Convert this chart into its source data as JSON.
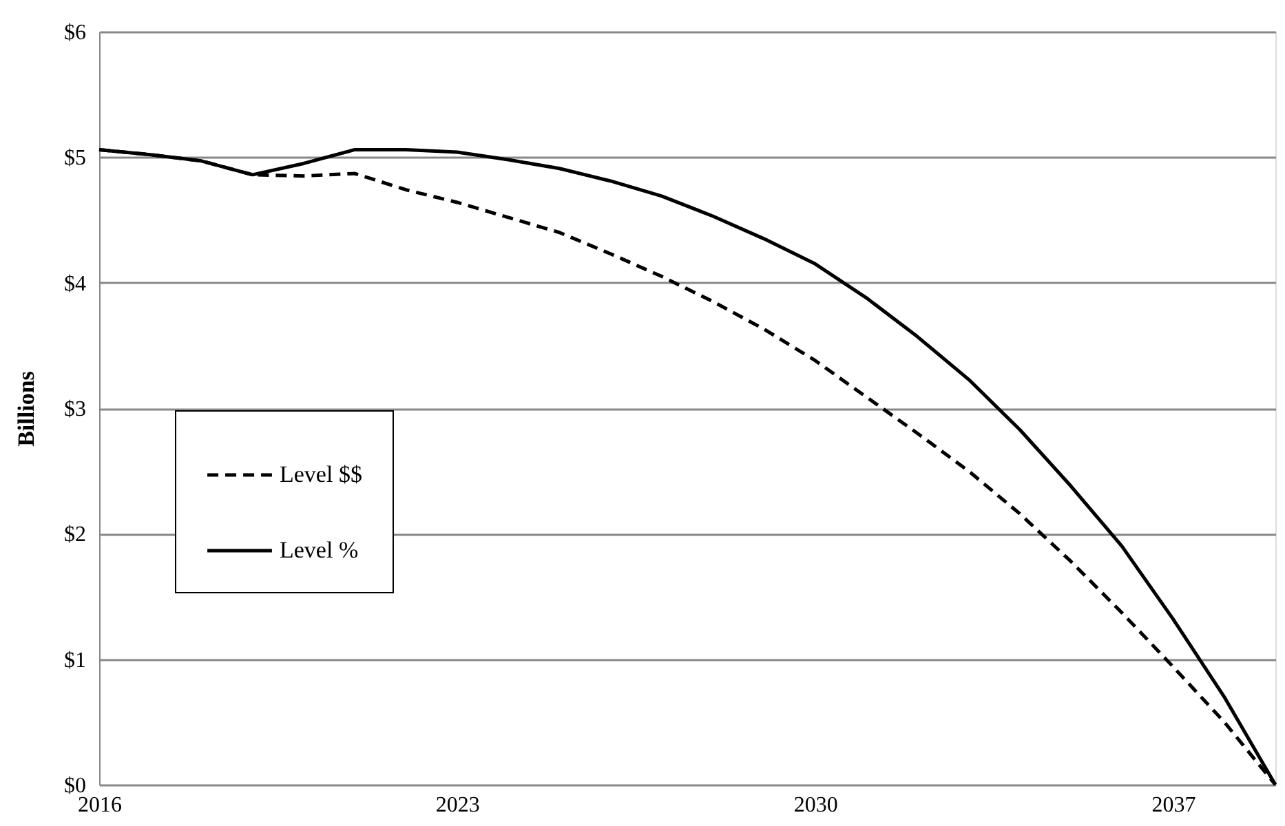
{
  "chart_data": {
    "type": "line",
    "ylabel": "Billions",
    "x": [
      2016,
      2017,
      2018,
      2019,
      2020,
      2021,
      2022,
      2023,
      2024,
      2025,
      2026,
      2027,
      2028,
      2029,
      2030,
      2031,
      2032,
      2033,
      2034,
      2035,
      2036,
      2037,
      2038,
      2039
    ],
    "series": [
      {
        "name": "Level $$",
        "color": "#000000",
        "line_style": "dashed",
        "values": [
          5.06,
          5.02,
          4.97,
          4.86,
          4.85,
          4.87,
          4.74,
          4.64,
          4.52,
          4.4,
          4.23,
          4.05,
          3.85,
          3.63,
          3.38,
          3.09,
          2.8,
          2.5,
          2.16,
          1.78,
          1.37,
          0.94,
          0.5,
          0
        ]
      },
      {
        "name": "Level %",
        "color": "#000000",
        "line_style": "solid",
        "values": [
          5.06,
          5.02,
          4.97,
          4.86,
          4.95,
          5.06,
          5.06,
          5.04,
          4.98,
          4.91,
          4.81,
          4.69,
          4.53,
          4.35,
          4.15,
          3.88,
          3.57,
          3.23,
          2.83,
          2.38,
          1.9,
          1.32,
          0.7,
          0
        ]
      }
    ],
    "xlim": [
      2016,
      2039
    ],
    "xticks": [
      2016,
      2023,
      2030,
      2037
    ],
    "ylim": [
      0,
      6
    ],
    "yticks": [
      {
        "value": 0,
        "label": "$0"
      },
      {
        "value": 1,
        "label": "$1"
      },
      {
        "value": 2,
        "label": "$2"
      },
      {
        "value": 3,
        "label": "$3"
      },
      {
        "value": 4,
        "label": "$4"
      },
      {
        "value": 5,
        "label": "$5"
      },
      {
        "value": 6,
        "label": "$6"
      }
    ],
    "grid": "y",
    "legend": "left",
    "marker": "none"
  }
}
